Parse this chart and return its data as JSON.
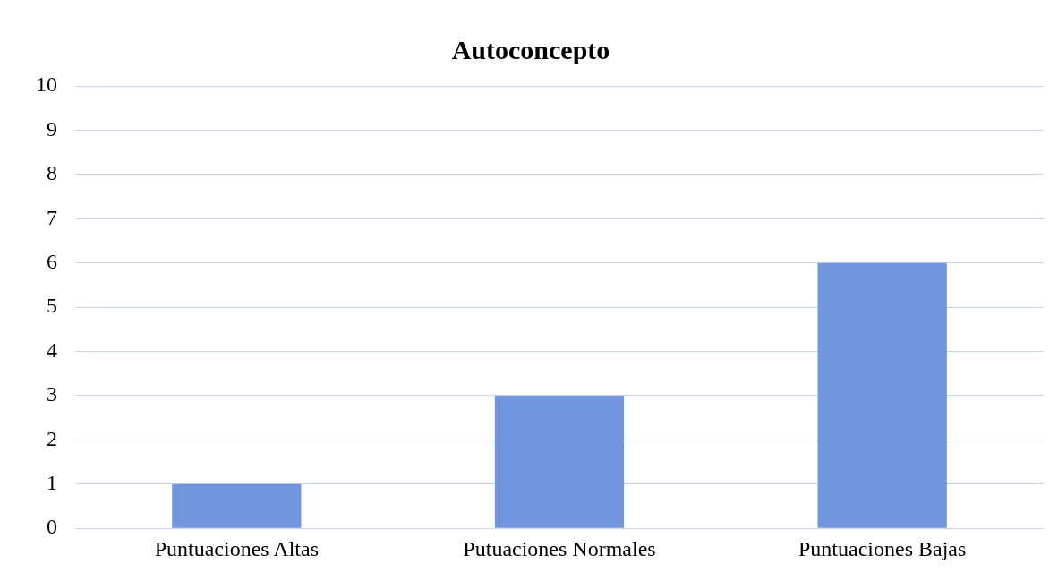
{
  "chart_data": {
    "type": "bar",
    "title": "Autoconcepto",
    "categories": [
      "Puntuaciones Altas",
      "Putuaciones Normales",
      "Puntuaciones Bajas"
    ],
    "values": [
      1,
      3,
      6
    ],
    "color": "#7196de",
    "ylim": [
      0,
      10
    ],
    "yticks": [
      0,
      1,
      2,
      3,
      4,
      5,
      6,
      7,
      8,
      9,
      10
    ],
    "grid": "y"
  }
}
